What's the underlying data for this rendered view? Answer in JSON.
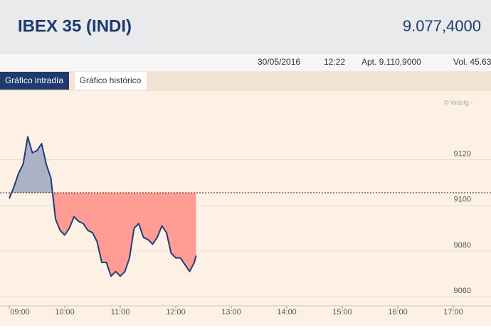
{
  "header": {
    "title": "IBEX 35 (INDI)",
    "last": "9.077,4000"
  },
  "info": {
    "date": "30/05/2016",
    "time": "12:22",
    "open": "Apt. 9.110,9000",
    "volume": "Vol. 45.63"
  },
  "tabs": [
    "Gráfico intradía",
    "Gráfico histórico"
  ],
  "watermark": "© Webfg -",
  "chart_data": {
    "type": "line",
    "x": [
      "09:00",
      "09:05",
      "09:10",
      "09:15",
      "09:20",
      "09:25",
      "09:30",
      "09:35",
      "09:40",
      "09:45",
      "09:50",
      "09:55",
      "10:00",
      "10:05",
      "10:10",
      "10:15",
      "10:20",
      "10:25",
      "10:30",
      "10:35",
      "10:40",
      "10:45",
      "10:50",
      "10:55",
      "11:00",
      "11:05",
      "11:10",
      "11:15",
      "11:20",
      "11:25",
      "11:30",
      "11:35",
      "11:40",
      "11:45",
      "11:50",
      "11:55",
      "12:00",
      "12:05",
      "12:10",
      "12:15",
      "12:20",
      "12:22"
    ],
    "values": [
      9103,
      9108,
      9114,
      9118,
      9130,
      9123,
      9124,
      9127,
      9118,
      9112,
      9094,
      9089,
      9087,
      9090,
      9095,
      9093,
      9092,
      9089,
      9088,
      9084,
      9075,
      9075,
      9069,
      9071,
      9069,
      9071,
      9077,
      9090,
      9092,
      9086,
      9085,
      9083,
      9086,
      9091,
      9088,
      9079,
      9077,
      9077,
      9074,
      9071,
      9075,
      9078
    ],
    "color": "#1f3d7a",
    "reference": 9105.5,
    "above_color": "#aab3c6",
    "below_color": "#ff9d94",
    "xlim": [
      "09:00",
      "17:30"
    ],
    "xticks": [
      "09:00",
      "10:00",
      "11:00",
      "12:00",
      "13:00",
      "14:00",
      "15:00",
      "16:00",
      "17:00"
    ],
    "ylim": [
      9056,
      9146
    ],
    "yticks": [
      9060,
      9080,
      9100,
      9120
    ],
    "grid": true
  }
}
